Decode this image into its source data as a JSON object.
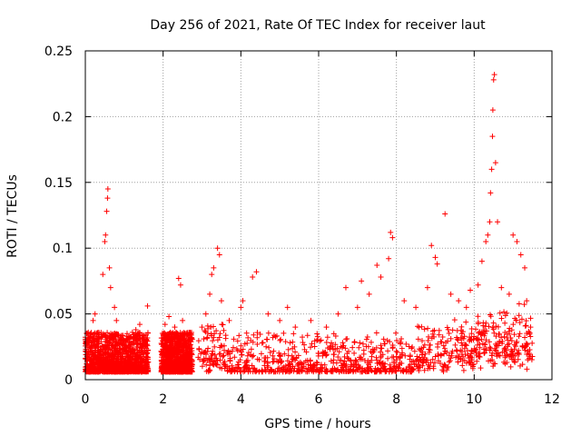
{
  "chart_data": {
    "type": "scatter",
    "title": "Day 256 of 2021, Rate Of TEC Index for receiver laut",
    "xlabel": "GPS time / hours",
    "ylabel": "ROTI / TECUs",
    "xlim": [
      0,
      12
    ],
    "ylim": [
      0,
      0.25
    ],
    "x_ticks": [
      0,
      2,
      4,
      6,
      8,
      10,
      12
    ],
    "y_ticks": [
      0,
      0.05,
      0.1,
      0.15,
      0.2,
      0.25
    ],
    "x_tick_labels": [
      "0",
      "2",
      "4",
      "6",
      "8",
      "10",
      "12"
    ],
    "y_tick_labels": [
      "0",
      "0.05",
      "0.1",
      "0.15",
      "0.2",
      "0.25"
    ],
    "grid": true,
    "marker": "+",
    "colors": {
      "series": "#ff0000",
      "grid": "#a0a0a0",
      "axis": "#000000"
    },
    "series": [
      {
        "name": "ROTI",
        "points": [
          [
            0.05,
            0.035
          ],
          [
            0.1,
            0.028
          ],
          [
            0.2,
            0.045
          ],
          [
            0.25,
            0.05
          ],
          [
            0.35,
            0.032
          ],
          [
            0.45,
            0.08
          ],
          [
            0.5,
            0.105
          ],
          [
            0.52,
            0.11
          ],
          [
            0.55,
            0.128
          ],
          [
            0.57,
            0.138
          ],
          [
            0.58,
            0.145
          ],
          [
            0.62,
            0.085
          ],
          [
            0.65,
            0.07
          ],
          [
            0.75,
            0.055
          ],
          [
            0.8,
            0.045
          ],
          [
            0.9,
            0.03
          ],
          [
            1.1,
            0.025
          ],
          [
            1.3,
            0.038
          ],
          [
            1.4,
            0.042
          ],
          [
            1.6,
            0.056
          ],
          [
            2.05,
            0.042
          ],
          [
            2.15,
            0.048
          ],
          [
            2.3,
            0.04
          ],
          [
            2.4,
            0.077
          ],
          [
            2.45,
            0.072
          ],
          [
            2.5,
            0.045
          ],
          [
            2.7,
            0.035
          ],
          [
            3.0,
            0.04
          ],
          [
            3.1,
            0.05
          ],
          [
            3.2,
            0.065
          ],
          [
            3.25,
            0.08
          ],
          [
            3.3,
            0.085
          ],
          [
            3.4,
            0.1
          ],
          [
            3.45,
            0.095
          ],
          [
            3.5,
            0.06
          ],
          [
            3.7,
            0.045
          ],
          [
            4.0,
            0.055
          ],
          [
            4.05,
            0.06
          ],
          [
            4.3,
            0.078
          ],
          [
            4.4,
            0.082
          ],
          [
            4.7,
            0.05
          ],
          [
            5.0,
            0.045
          ],
          [
            5.2,
            0.055
          ],
          [
            5.4,
            0.04
          ],
          [
            5.8,
            0.045
          ],
          [
            6.2,
            0.04
          ],
          [
            6.5,
            0.05
          ],
          [
            6.7,
            0.07
          ],
          [
            7.0,
            0.055
          ],
          [
            7.1,
            0.075
          ],
          [
            7.3,
            0.065
          ],
          [
            7.5,
            0.087
          ],
          [
            7.6,
            0.078
          ],
          [
            7.8,
            0.092
          ],
          [
            7.85,
            0.112
          ],
          [
            7.9,
            0.108
          ],
          [
            8.2,
            0.06
          ],
          [
            8.5,
            0.055
          ],
          [
            8.8,
            0.07
          ],
          [
            8.9,
            0.102
          ],
          [
            9.0,
            0.093
          ],
          [
            9.05,
            0.088
          ],
          [
            9.25,
            0.126
          ],
          [
            9.4,
            0.065
          ],
          [
            9.6,
            0.06
          ],
          [
            9.8,
            0.055
          ],
          [
            9.9,
            0.068
          ],
          [
            10.1,
            0.072
          ],
          [
            10.2,
            0.09
          ],
          [
            10.3,
            0.105
          ],
          [
            10.35,
            0.11
          ],
          [
            10.4,
            0.12
          ],
          [
            10.42,
            0.142
          ],
          [
            10.45,
            0.16
          ],
          [
            10.47,
            0.185
          ],
          [
            10.48,
            0.205
          ],
          [
            10.5,
            0.228
          ],
          [
            10.52,
            0.232
          ],
          [
            10.55,
            0.165
          ],
          [
            10.6,
            0.12
          ],
          [
            10.7,
            0.07
          ],
          [
            10.9,
            0.065
          ],
          [
            11.0,
            0.11
          ],
          [
            11.1,
            0.105
          ],
          [
            11.2,
            0.095
          ],
          [
            11.3,
            0.085
          ],
          [
            11.35,
            0.06
          ],
          [
            11.45,
            0.04
          ]
        ]
      }
    ]
  }
}
